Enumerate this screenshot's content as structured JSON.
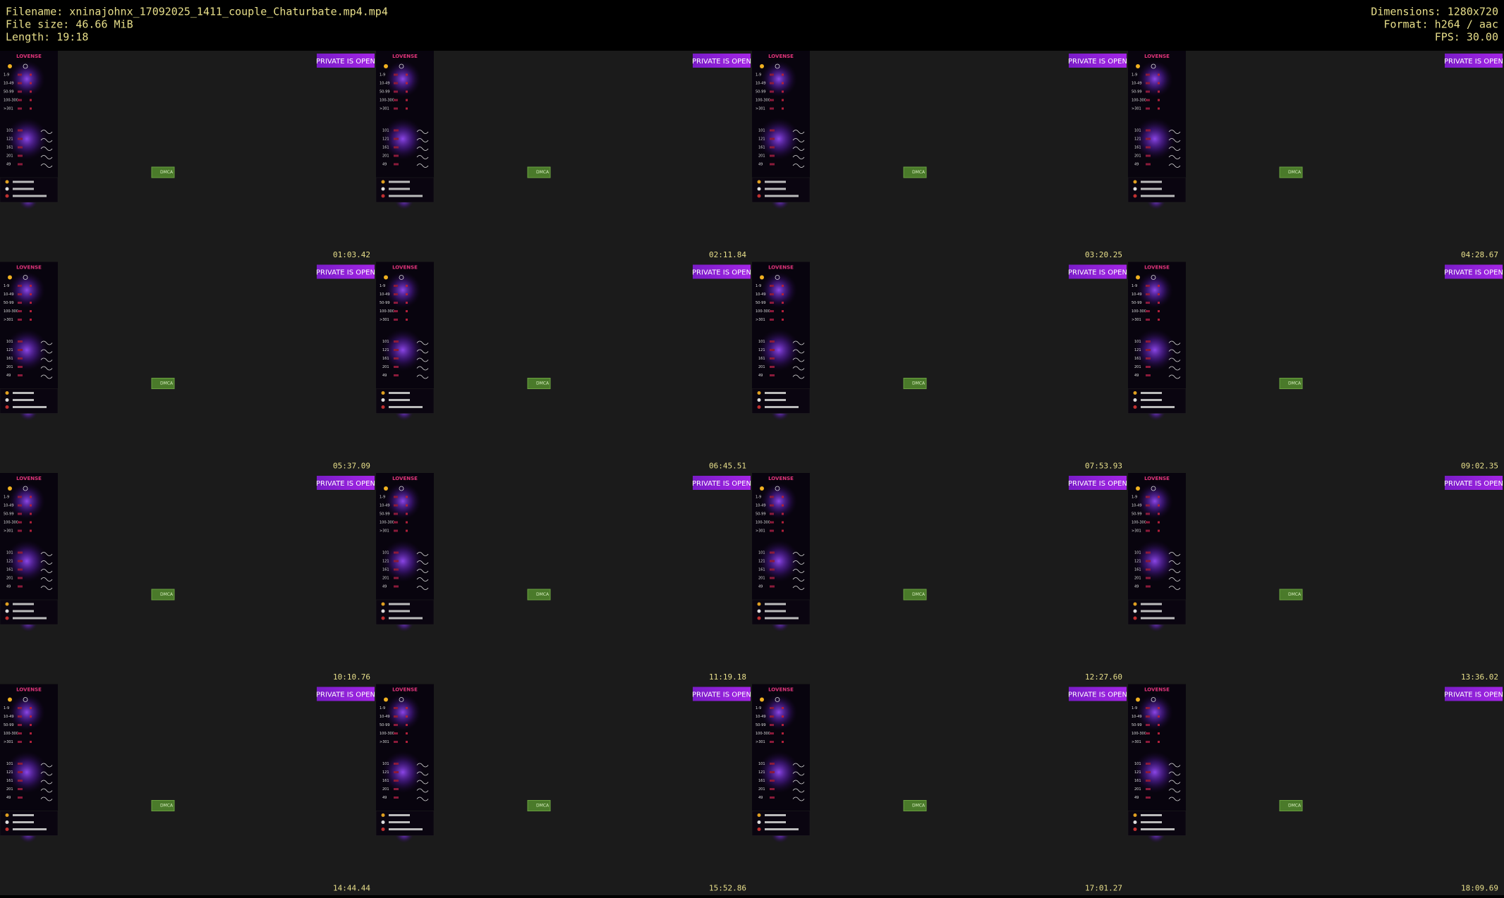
{
  "header": {
    "filename": "Filename: xninajohnx_17092025_1411_couple_Chaturbate.mp4.mp4",
    "file_size": "File size: 46.66 MiB",
    "length": "Length: 19:18",
    "dimensions": "Dimensions: 1280x720",
    "format": "Format: h264 / aac",
    "fps": "FPS: 30.00"
  },
  "frame": {
    "brand": "LOVENSE",
    "badge": "PRIVATE IS OPEN",
    "levels": [
      "1-9",
      "10-49",
      "50-99",
      "100-300",
      ">301"
    ],
    "specials": [
      "101",
      "121",
      "161",
      "201",
      "49"
    ],
    "dmca": "DMCA"
  },
  "thumbnails": [
    "01:03.42",
    "02:11.84",
    "03:20.25",
    "04:28.67",
    "05:37.09",
    "06:45.51",
    "07:53.93",
    "09:02.35",
    "10:10.76",
    "11:19.18",
    "12:27.60",
    "13:36.02",
    "14:44.44",
    "15:52.86",
    "17:01.27",
    "18:09.69"
  ]
}
